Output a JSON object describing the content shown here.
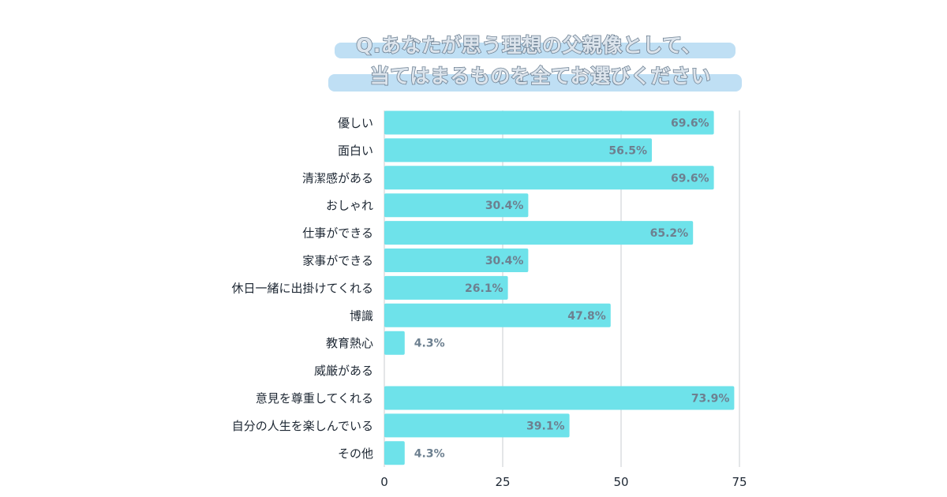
{
  "title": {
    "line1": "Q.あなたが思う理想の父親像として、",
    "line2": "当てはまるものを全てお選びください"
  },
  "colors": {
    "bar": "#6ee2ea",
    "grid": "#c8ccd0",
    "value_label": "#6d8090",
    "title_highlight": "#bfdff4"
  },
  "chart_data": {
    "type": "bar",
    "orientation": "horizontal",
    "categories": [
      "優しい",
      "面白い",
      "清潔感がある",
      "おしゃれ",
      "仕事ができる",
      "家事ができる",
      "休日一緒に出掛けてくれる",
      "博識",
      "教育熱心",
      "威厳がある",
      "意見を尊重してくれる",
      "自分の人生を楽しんでいる",
      "その他"
    ],
    "values": [
      69.6,
      56.5,
      69.6,
      30.4,
      65.2,
      30.4,
      26.1,
      47.8,
      4.3,
      0,
      73.9,
      39.1,
      4.3
    ],
    "value_labels": [
      "69.6%",
      "56.5%",
      "69.6%",
      "30.4%",
      "65.2%",
      "30.4%",
      "26.1%",
      "47.8%",
      "4.3%",
      "",
      "73.9%",
      "39.1%",
      "4.3%"
    ],
    "xlim": [
      0,
      75
    ],
    "xticks": [
      "0",
      "25",
      "50",
      "75"
    ],
    "grid": true
  }
}
